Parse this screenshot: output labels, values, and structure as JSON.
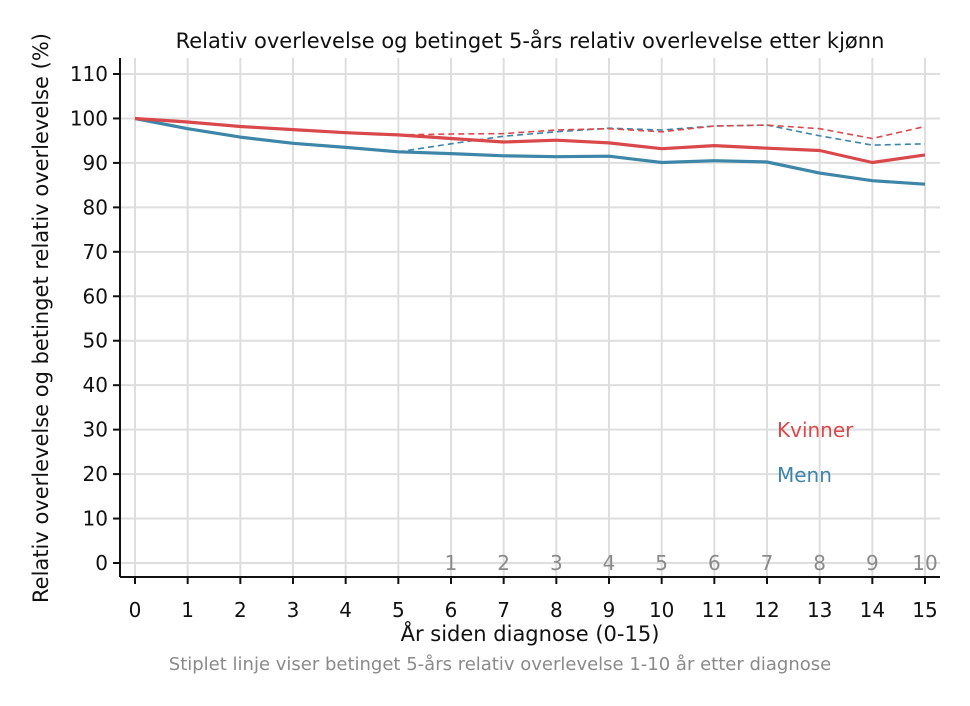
{
  "chart_data": {
    "type": "line",
    "title": "Relativ overlevelse og betinget 5-års relativ overlevelse etter kjønn",
    "xlabel": "År siden diagnose (0-15)",
    "ylabel": "Relativ overlevelse og betinget relativ overlevelse (%)",
    "footnote": "Stiplet linje viser betinget 5-års relativ overlevelse 1-10 år etter diagnose",
    "xlim": [
      0,
      15
    ],
    "ylim": [
      0,
      110
    ],
    "x_ticks": [
      "0",
      "1",
      "2",
      "3",
      "4",
      "5",
      "6",
      "7",
      "8",
      "9",
      "10",
      "11",
      "12",
      "13",
      "14",
      "15"
    ],
    "y_ticks": [
      "0",
      "10",
      "20",
      "30",
      "40",
      "50",
      "60",
      "70",
      "80",
      "90",
      "100",
      "110"
    ],
    "conditional_ticks": [
      "1",
      "2",
      "3",
      "4",
      "5",
      "6",
      "7",
      "8",
      "9",
      "10"
    ],
    "grid": true,
    "legend_position": "bottom-right",
    "series": [
      {
        "name": "Kvinner",
        "color": "#d9484a",
        "style": "solid",
        "x": [
          0,
          1,
          2,
          3,
          4,
          5,
          6,
          7,
          8,
          9,
          10,
          11,
          12,
          13,
          14,
          15
        ],
        "y": [
          100,
          99.2,
          98.2,
          97.5,
          96.8,
          96.3,
          95.5,
          94.7,
          95.1,
          94.5,
          93.2,
          93.9,
          93.3,
          92.8,
          90.1,
          91.8
        ]
      },
      {
        "name": "Menn",
        "color": "#3d86a8",
        "style": "solid",
        "x": [
          0,
          1,
          2,
          3,
          4,
          5,
          6,
          7,
          8,
          9,
          10,
          11,
          12,
          13,
          14,
          15
        ],
        "y": [
          100,
          97.7,
          95.8,
          94.4,
          93.5,
          92.5,
          92.1,
          91.6,
          91.4,
          91.5,
          90.1,
          90.5,
          90.2,
          87.7,
          86.0,
          85.2
        ]
      },
      {
        "name": "Kvinner betinget",
        "color": "#d9484a",
        "style": "dashed",
        "x": [
          5,
          6,
          7,
          8,
          9,
          10,
          11,
          12,
          13,
          14,
          15
        ],
        "y": [
          96.3,
          96.5,
          96.6,
          97.4,
          97.7,
          97.0,
          98.3,
          98.5,
          97.7,
          95.5,
          98.2
        ]
      },
      {
        "name": "Menn betinget",
        "color": "#3d86a8",
        "style": "dashed",
        "x": [
          5,
          6,
          7,
          8,
          9,
          10,
          11,
          12,
          13,
          14,
          15
        ],
        "y": [
          92.5,
          94.3,
          96.0,
          97.0,
          97.8,
          97.4,
          98.3,
          98.5,
          96.1,
          94.0,
          94.3
        ]
      }
    ],
    "legend": [
      {
        "label": "Kvinner",
        "color": "#d9484a"
      },
      {
        "label": "Menn",
        "color": "#3d86a8"
      }
    ]
  }
}
